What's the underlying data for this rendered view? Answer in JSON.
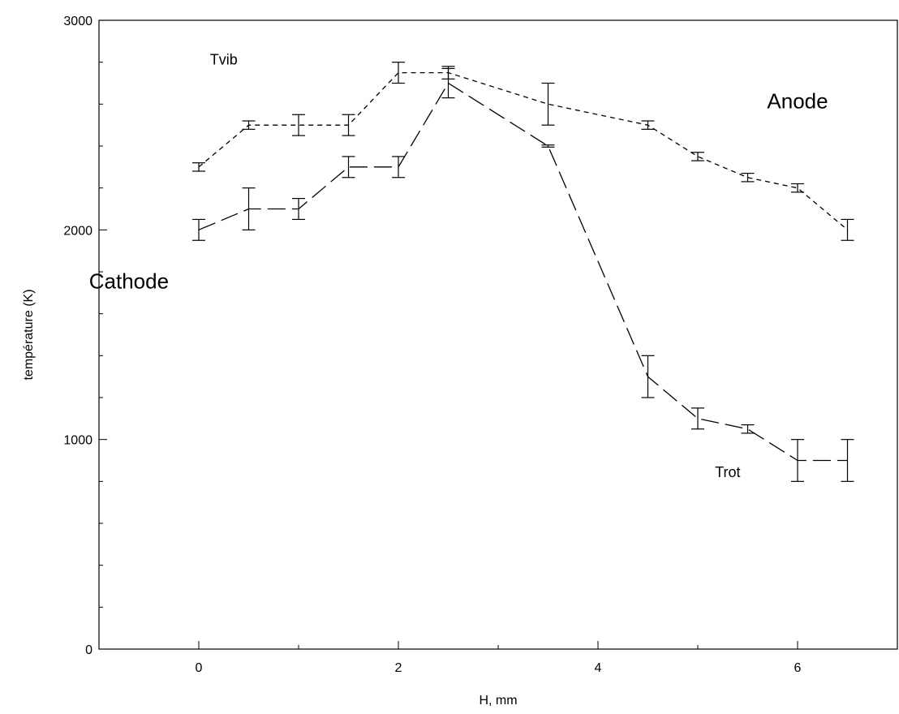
{
  "chart_data": {
    "type": "line",
    "title": "",
    "xlabel": "H, mm",
    "ylabel": "température (K)",
    "xlim": [
      -1,
      7
    ],
    "ylim": [
      0,
      3000
    ],
    "x_ticks": [
      0,
      2,
      4,
      6
    ],
    "y_ticks": [
      0,
      1000,
      2000,
      3000
    ],
    "y_minor_step": 200,
    "x_minor_step": 1,
    "grid": false,
    "series": [
      {
        "name": "Tvib",
        "line_style": "short-dash",
        "x": [
          0,
          0.5,
          1,
          1.5,
          2,
          2.5,
          3.5,
          4.5,
          5,
          5.5,
          6,
          6.5
        ],
        "y": [
          2300,
          2500,
          2500,
          2500,
          2750,
          2750,
          2600,
          2500,
          2350,
          2250,
          2200,
          2000
        ],
        "err": [
          20,
          20,
          50,
          50,
          50,
          30,
          100,
          20,
          20,
          20,
          20,
          50
        ]
      },
      {
        "name": "Trot",
        "line_style": "long-dash",
        "x": [
          0,
          0.5,
          1,
          1.5,
          2,
          2.5,
          3.5,
          4.5,
          5,
          5.5,
          6,
          6.5
        ],
        "y": [
          2000,
          2100,
          2100,
          2300,
          2300,
          2700,
          2400,
          1300,
          1100,
          1050,
          900,
          900
        ],
        "err": [
          50,
          100,
          50,
          50,
          50,
          70,
          5,
          100,
          50,
          20,
          100,
          100
        ]
      }
    ],
    "annotations": [
      {
        "text": "Anode",
        "x": 6.0,
        "y": 2580
      },
      {
        "text": "Cathode",
        "x": -0.7,
        "y": 1720
      }
    ],
    "series_labels": [
      {
        "text": "Tvib",
        "x": 0.25,
        "y": 2790
      },
      {
        "text": "Trot",
        "x": 5.3,
        "y": 820
      }
    ]
  }
}
